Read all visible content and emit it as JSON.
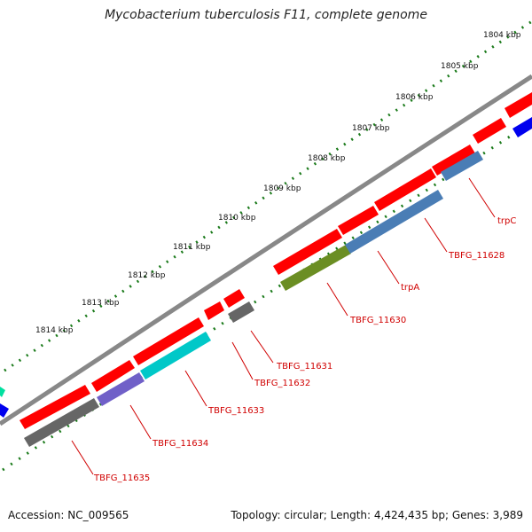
{
  "title": "Mycobacterium tuberculosis F11, complete genome",
  "footer": {
    "accession": "Accession: NC_009565",
    "summary": "Topology: circular; Length: 4,424,435 bp; Genes: 3,989"
  },
  "colors": {
    "backbone": "#888888",
    "scale": "#1a7a1a",
    "gene_label": "#d00000",
    "cds": "#ff0000",
    "steelblue": "#4a7db5",
    "olive": "#6b8e23",
    "cyan": "#00c8c8",
    "purple": "#7060c8",
    "grey": "#666666",
    "blue": "#0000ee",
    "teal": "#00e0a0"
  },
  "scale_labels": [
    "1804 kbp",
    "1805 kbp",
    "1806 kbp",
    "1807 kbp",
    "1808 kbp",
    "1809 kbp",
    "1810 kbp",
    "1811 kbp",
    "1812 kbp",
    "1813 kbp",
    "1814 kbp"
  ],
  "gene_labels": [
    "trpC",
    "TBFG_11628",
    "trpA",
    "TBFG_11630",
    "TBFG_11631",
    "TBFG_11632",
    "TBFG_11633",
    "TBFG_11634",
    "TBFG_11635"
  ]
}
